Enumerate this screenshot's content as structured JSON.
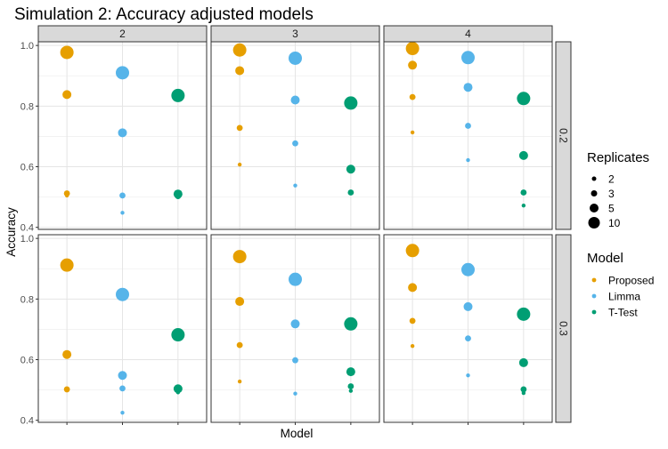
{
  "chart_data": {
    "type": "scatter",
    "title": "Simulation 2: Accuracy adjusted models",
    "xlabel": "Model",
    "ylabel": "Accuracy",
    "x_categories": [
      "Proposed",
      "Limma",
      "T-Test"
    ],
    "ylim": [
      0.4,
      1.0
    ],
    "yticks": [
      0.4,
      0.6,
      0.8,
      1.0
    ],
    "ytick_labels": [
      "0.4",
      "0.6",
      "0.8",
      "1.0"
    ],
    "grid": true,
    "facet_columns": [
      "2",
      "3",
      "4"
    ],
    "facet_rows": [
      "0.2",
      "0.3"
    ],
    "legend_placement": "right",
    "legends": {
      "size": {
        "title": "Replicates",
        "entries": [
          "2",
          "3",
          "5",
          "10"
        ]
      },
      "color": {
        "title": "Model",
        "entries": [
          {
            "label": "Proposed",
            "color": "#E69F00"
          },
          {
            "label": "Limma",
            "color": "#56B4E9"
          },
          {
            "label": "T-Test",
            "color": "#009E73"
          }
        ]
      }
    },
    "panels": [
      {
        "col": "2",
        "row": "0.2",
        "points": [
          {
            "model": "Proposed",
            "replicates": "10",
            "y": 0.977
          },
          {
            "model": "Proposed",
            "replicates": "5",
            "y": 0.838
          },
          {
            "model": "Proposed",
            "replicates": "3",
            "y": 0.512
          },
          {
            "model": "Proposed",
            "replicates": "2",
            "y": 0.505
          },
          {
            "model": "Limma",
            "replicates": "10",
            "y": 0.91
          },
          {
            "model": "Limma",
            "replicates": "5",
            "y": 0.712
          },
          {
            "model": "Limma",
            "replicates": "3",
            "y": 0.505
          },
          {
            "model": "Limma",
            "replicates": "2",
            "y": 0.448
          },
          {
            "model": "T-Test",
            "replicates": "10",
            "y": 0.835
          },
          {
            "model": "T-Test",
            "replicates": "5",
            "y": 0.51
          },
          {
            "model": "T-Test",
            "replicates": "3",
            "y": 0.503
          },
          {
            "model": "T-Test",
            "replicates": "2",
            "y": 0.5
          }
        ]
      },
      {
        "col": "3",
        "row": "0.2",
        "points": [
          {
            "model": "Proposed",
            "replicates": "10",
            "y": 0.985
          },
          {
            "model": "Proposed",
            "replicates": "5",
            "y": 0.917
          },
          {
            "model": "Proposed",
            "replicates": "3",
            "y": 0.728
          },
          {
            "model": "Proposed",
            "replicates": "2",
            "y": 0.607
          },
          {
            "model": "Limma",
            "replicates": "10",
            "y": 0.958
          },
          {
            "model": "Limma",
            "replicates": "5",
            "y": 0.82
          },
          {
            "model": "Limma",
            "replicates": "3",
            "y": 0.677
          },
          {
            "model": "Limma",
            "replicates": "2",
            "y": 0.538
          },
          {
            "model": "T-Test",
            "replicates": "10",
            "y": 0.81
          },
          {
            "model": "T-Test",
            "replicates": "5",
            "y": 0.592
          },
          {
            "model": "T-Test",
            "replicates": "3",
            "y": 0.515
          },
          {
            "model": "T-Test",
            "replicates": "2",
            "y": 0.513
          }
        ]
      },
      {
        "col": "4",
        "row": "0.2",
        "points": [
          {
            "model": "Proposed",
            "replicates": "10",
            "y": 0.99
          },
          {
            "model": "Proposed",
            "replicates": "5",
            "y": 0.935
          },
          {
            "model": "Proposed",
            "replicates": "3",
            "y": 0.83
          },
          {
            "model": "Proposed",
            "replicates": "2",
            "y": 0.713
          },
          {
            "model": "Limma",
            "replicates": "10",
            "y": 0.96
          },
          {
            "model": "Limma",
            "replicates": "5",
            "y": 0.862
          },
          {
            "model": "Limma",
            "replicates": "3",
            "y": 0.735
          },
          {
            "model": "Limma",
            "replicates": "2",
            "y": 0.622
          },
          {
            "model": "T-Test",
            "replicates": "10",
            "y": 0.825
          },
          {
            "model": "T-Test",
            "replicates": "5",
            "y": 0.637
          },
          {
            "model": "T-Test",
            "replicates": "3",
            "y": 0.515
          },
          {
            "model": "T-Test",
            "replicates": "2",
            "y": 0.472
          }
        ]
      },
      {
        "col": "2",
        "row": "0.3",
        "points": [
          {
            "model": "Proposed",
            "replicates": "10",
            "y": 0.912
          },
          {
            "model": "Proposed",
            "replicates": "5",
            "y": 0.617
          },
          {
            "model": "Proposed",
            "replicates": "3",
            "y": 0.502
          },
          {
            "model": "Proposed",
            "replicates": "2",
            "y": 0.5
          },
          {
            "model": "Limma",
            "replicates": "10",
            "y": 0.815
          },
          {
            "model": "Limma",
            "replicates": "5",
            "y": 0.548
          },
          {
            "model": "Limma",
            "replicates": "3",
            "y": 0.505
          },
          {
            "model": "Limma",
            "replicates": "2",
            "y": 0.425
          },
          {
            "model": "T-Test",
            "replicates": "10",
            "y": 0.682
          },
          {
            "model": "T-Test",
            "replicates": "5",
            "y": 0.504
          },
          {
            "model": "T-Test",
            "replicates": "3",
            "y": 0.499
          },
          {
            "model": "T-Test",
            "replicates": "2",
            "y": 0.492
          }
        ]
      },
      {
        "col": "3",
        "row": "0.3",
        "points": [
          {
            "model": "Proposed",
            "replicates": "10",
            "y": 0.94
          },
          {
            "model": "Proposed",
            "replicates": "5",
            "y": 0.792
          },
          {
            "model": "Proposed",
            "replicates": "3",
            "y": 0.648
          },
          {
            "model": "Proposed",
            "replicates": "2",
            "y": 0.528
          },
          {
            "model": "Limma",
            "replicates": "10",
            "y": 0.865
          },
          {
            "model": "Limma",
            "replicates": "5",
            "y": 0.718
          },
          {
            "model": "Limma",
            "replicates": "3",
            "y": 0.598
          },
          {
            "model": "Limma",
            "replicates": "2",
            "y": 0.488
          },
          {
            "model": "T-Test",
            "replicates": "10",
            "y": 0.718
          },
          {
            "model": "T-Test",
            "replicates": "5",
            "y": 0.56
          },
          {
            "model": "T-Test",
            "replicates": "3",
            "y": 0.512
          },
          {
            "model": "T-Test",
            "replicates": "2",
            "y": 0.497
          }
        ]
      },
      {
        "col": "4",
        "row": "0.3",
        "points": [
          {
            "model": "Proposed",
            "replicates": "10",
            "y": 0.96
          },
          {
            "model": "Proposed",
            "replicates": "5",
            "y": 0.838
          },
          {
            "model": "Proposed",
            "replicates": "3",
            "y": 0.728
          },
          {
            "model": "Proposed",
            "replicates": "2",
            "y": 0.645
          },
          {
            "model": "Limma",
            "replicates": "10",
            "y": 0.897
          },
          {
            "model": "Limma",
            "replicates": "5",
            "y": 0.775
          },
          {
            "model": "Limma",
            "replicates": "3",
            "y": 0.67
          },
          {
            "model": "Limma",
            "replicates": "2",
            "y": 0.548
          },
          {
            "model": "T-Test",
            "replicates": "10",
            "y": 0.75
          },
          {
            "model": "T-Test",
            "replicates": "5",
            "y": 0.59
          },
          {
            "model": "T-Test",
            "replicates": "3",
            "y": 0.502
          },
          {
            "model": "T-Test",
            "replicates": "2",
            "y": 0.49
          }
        ]
      }
    ]
  }
}
